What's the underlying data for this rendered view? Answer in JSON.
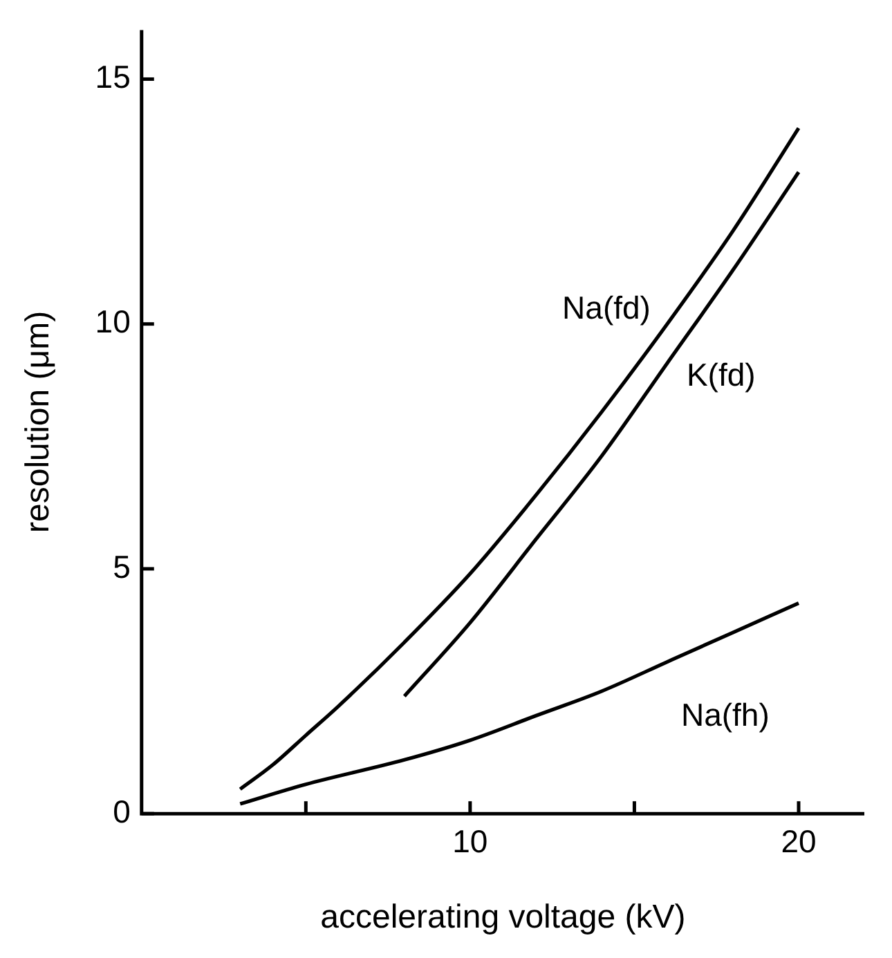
{
  "chart_data": {
    "type": "line",
    "xlabel": "accelerating voltage (kV)",
    "ylabel": "resolution (μm)",
    "xlim": [
      0,
      22
    ],
    "ylim": [
      0,
      16
    ],
    "xticks": [
      {
        "value": 5,
        "label": null
      },
      10,
      {
        "value": 15,
        "label": null
      },
      20
    ],
    "yticks": [
      0,
      5,
      10,
      15
    ],
    "grid": false,
    "legend": false,
    "marker": "none",
    "line_style": "solid",
    "series": [
      {
        "name": "Na(fd)",
        "color": "#000000",
        "x": [
          3,
          4,
          5,
          6,
          8,
          10,
          12,
          14,
          16,
          18,
          20
        ],
        "values": [
          0.5,
          1.0,
          1.6,
          2.2,
          3.5,
          4.9,
          6.5,
          8.2,
          10.0,
          11.9,
          14.0
        ]
      },
      {
        "name": "K(fd)",
        "color": "#000000",
        "x": [
          8,
          10,
          12,
          14,
          16,
          18,
          20
        ],
        "values": [
          2.4,
          3.9,
          5.6,
          7.3,
          9.2,
          11.1,
          13.1
        ]
      },
      {
        "name": "Na(fh)",
        "color": "#000000",
        "x": [
          3,
          5,
          8,
          10,
          12,
          14,
          16,
          18,
          20
        ],
        "values": [
          0.2,
          0.6,
          1.1,
          1.5,
          2.0,
          2.5,
          3.1,
          3.7,
          4.3
        ]
      }
    ]
  }
}
